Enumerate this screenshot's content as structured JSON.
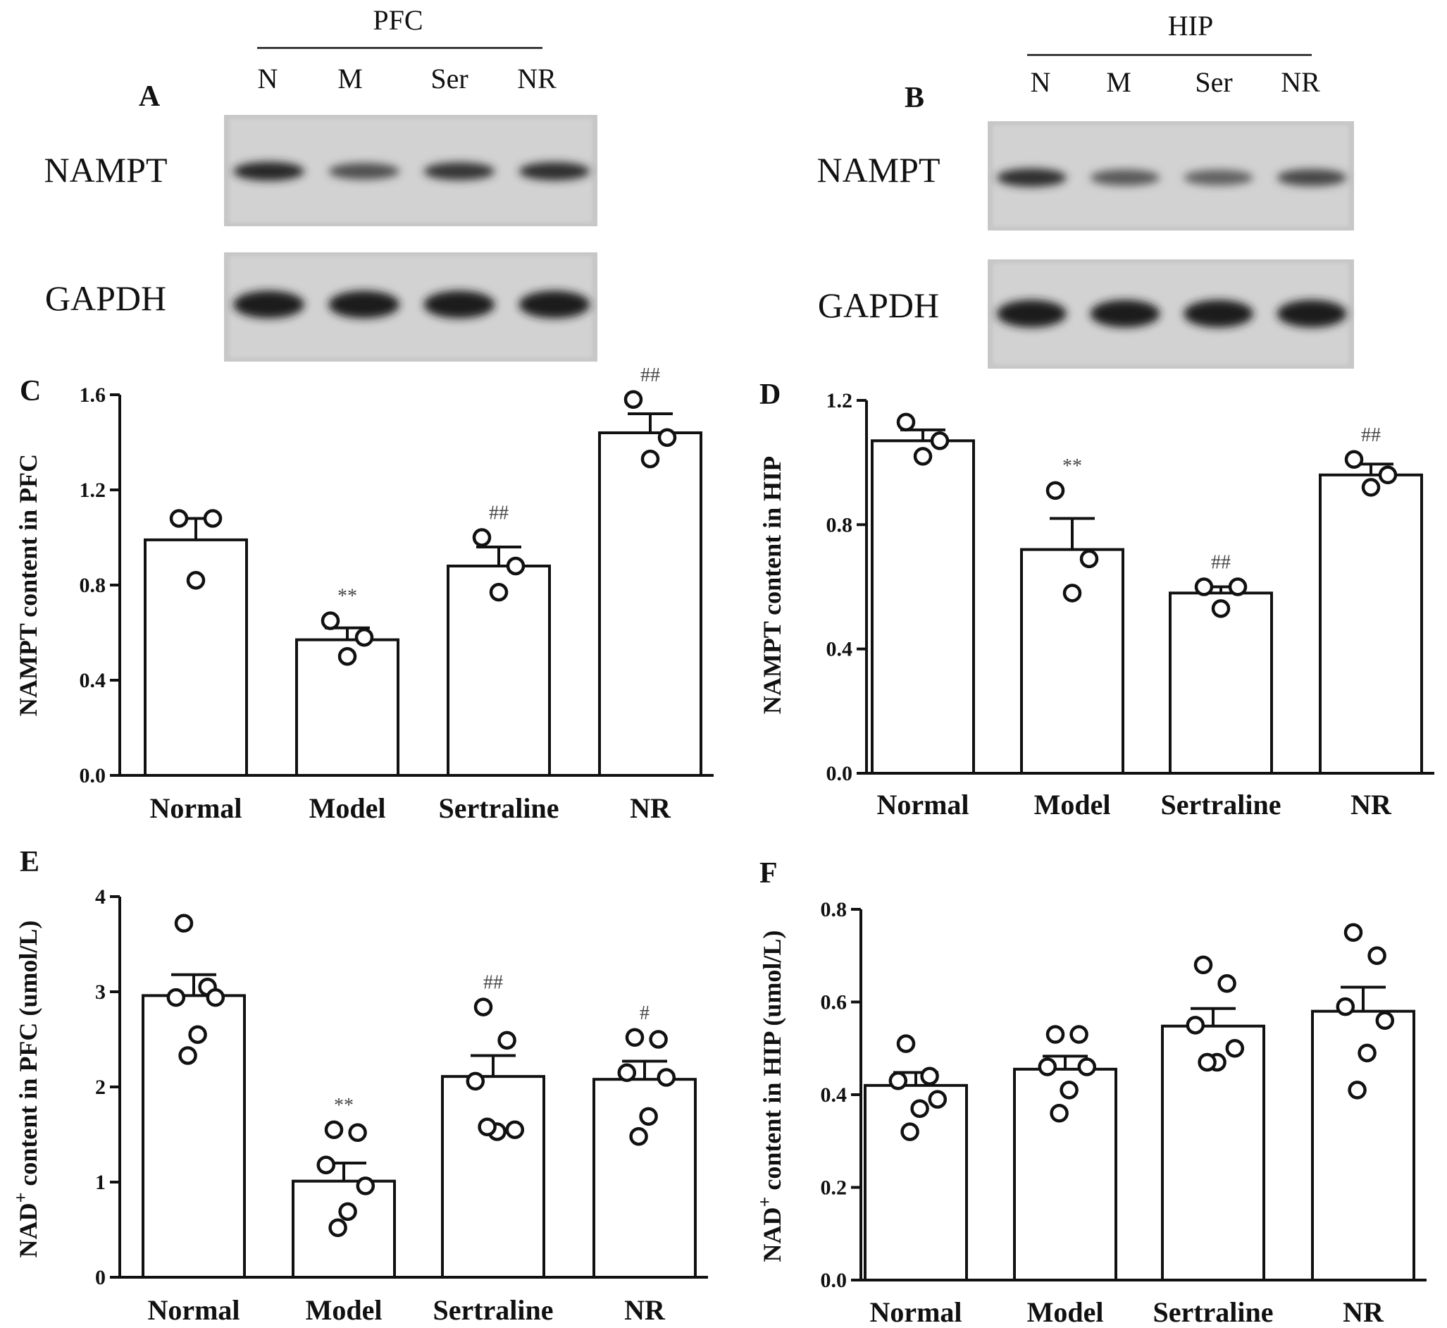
{
  "blots": [
    {
      "letter": "A",
      "group": "PFC",
      "lanes": [
        "N",
        "M",
        "Ser",
        "NR"
      ],
      "proteins": [
        "NAMPT",
        "GAPDH"
      ],
      "nampt_band_intensity": [
        0.9,
        0.65,
        0.8,
        0.85
      ],
      "gapdh_band_intensity": [
        0.95,
        0.95,
        0.95,
        0.95
      ]
    },
    {
      "letter": "B",
      "group": "HIP",
      "lanes": [
        "N",
        "M",
        "Ser",
        "NR"
      ],
      "proteins": [
        "NAMPT",
        "GAPDH"
      ],
      "nampt_band_intensity": [
        0.85,
        0.6,
        0.55,
        0.7
      ],
      "gapdh_band_intensity": [
        0.95,
        0.95,
        0.95,
        0.95
      ]
    }
  ],
  "chart_data": [
    {
      "letter": "C",
      "type": "bar",
      "categories": [
        "Normal",
        "Model",
        "Sertraline",
        "NR"
      ],
      "values": [
        0.99,
        0.57,
        0.88,
        1.44
      ],
      "errors": [
        0.09,
        0.05,
        0.08,
        0.08
      ],
      "points": [
        [
          1.08,
          1.08,
          0.82
        ],
        [
          0.65,
          0.58,
          0.5
        ],
        [
          1.0,
          0.88,
          0.77
        ],
        [
          1.58,
          1.42,
          1.33
        ]
      ],
      "significance": [
        "",
        "**",
        "##",
        "##"
      ],
      "ylabel": "NAMPT content in PFC",
      "ylabel_sup": "",
      "ylabel_rest": "",
      "ylim": [
        0,
        1.6
      ],
      "yticks": [
        "0.0",
        "0.4",
        "0.8",
        "1.2",
        "1.6"
      ]
    },
    {
      "letter": "D",
      "type": "bar",
      "categories": [
        "Normal",
        "Model",
        "Sertraline",
        "NR"
      ],
      "values": [
        1.07,
        0.72,
        0.58,
        0.96
      ],
      "errors": [
        0.035,
        0.1,
        0.02,
        0.035
      ],
      "points": [
        [
          1.13,
          1.07,
          1.02
        ],
        [
          0.91,
          0.69,
          0.58
        ],
        [
          0.6,
          0.6,
          0.53
        ],
        [
          1.01,
          0.96,
          0.92
        ]
      ],
      "significance": [
        "",
        "**",
        "##",
        "##"
      ],
      "ylabel": "NAMPT content in HIP",
      "ylabel_sup": "",
      "ylabel_rest": "",
      "ylim": [
        0,
        1.2
      ],
      "yticks": [
        "0.0",
        "0.4",
        "0.8",
        "1.2"
      ]
    },
    {
      "letter": "E",
      "type": "bar",
      "categories": [
        "Normal",
        "Model",
        "Sertraline",
        "NR"
      ],
      "values": [
        2.96,
        1.01,
        2.11,
        2.08
      ],
      "errors": [
        0.22,
        0.19,
        0.22,
        0.19
      ],
      "points": [
        [
          3.72,
          3.05,
          2.94,
          2.94,
          2.55,
          2.33
        ],
        [
          1.55,
          1.52,
          1.18,
          0.96,
          0.69,
          0.52
        ],
        [
          2.84,
          2.49,
          2.06,
          1.55,
          1.53,
          1.58
        ],
        [
          2.52,
          2.5,
          2.15,
          2.1,
          1.69,
          1.48
        ]
      ],
      "significance": [
        "",
        "**",
        "##",
        "#"
      ],
      "ylabel": "NAD",
      "ylabel_sup": "+",
      "ylabel_rest": " content in PFC (umol/L)",
      "ylim": [
        0,
        4
      ],
      "yticks": [
        "0",
        "1",
        "2",
        "3",
        "4"
      ]
    },
    {
      "letter": "F",
      "type": "bar",
      "categories": [
        "Normal",
        "Model",
        "Sertraline",
        "NR"
      ],
      "values": [
        0.42,
        0.455,
        0.548,
        0.58
      ],
      "errors": [
        0.028,
        0.028,
        0.038,
        0.052
      ],
      "points": [
        [
          0.51,
          0.44,
          0.43,
          0.39,
          0.37,
          0.32
        ],
        [
          0.53,
          0.53,
          0.46,
          0.46,
          0.41,
          0.36
        ],
        [
          0.68,
          0.64,
          0.55,
          0.5,
          0.47,
          0.47
        ],
        [
          0.75,
          0.7,
          0.59,
          0.56,
          0.49,
          0.41
        ]
      ],
      "significance": [
        "",
        "",
        "",
        ""
      ],
      "ylabel": "NAD",
      "ylabel_sup": "+",
      "ylabel_rest": " content in HIP (umol/L)",
      "ylim": [
        0,
        0.8
      ],
      "yticks": [
        "0.0",
        "0.2",
        "0.4",
        "0.6",
        "0.8"
      ]
    }
  ]
}
